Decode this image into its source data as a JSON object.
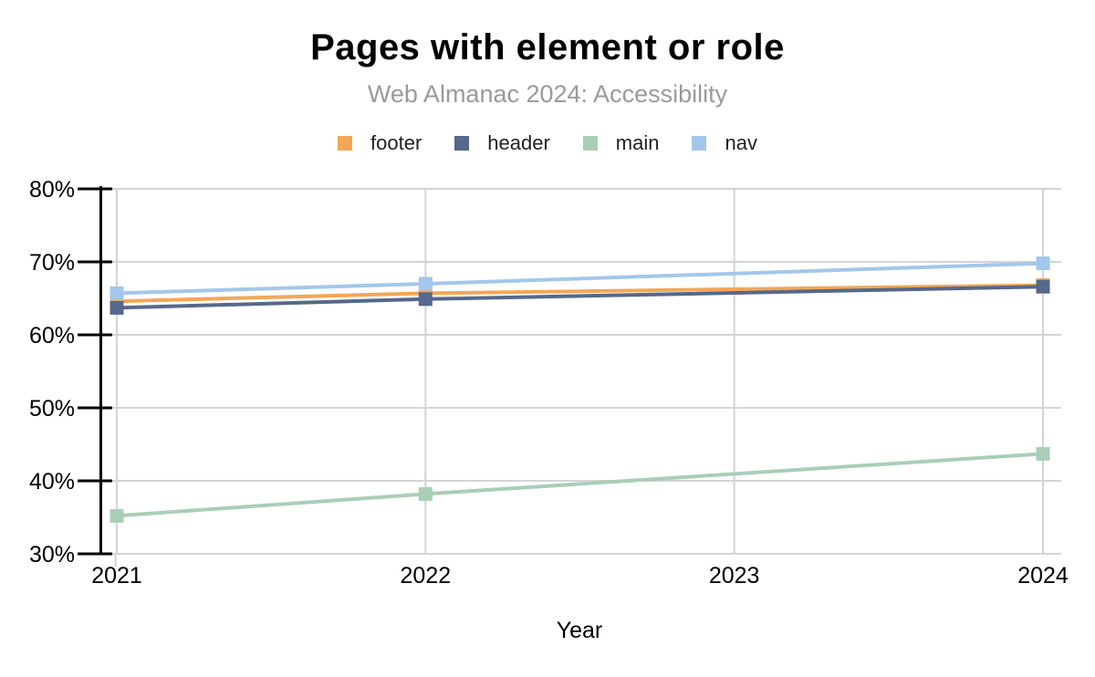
{
  "chart_data": {
    "type": "line",
    "title": "Pages with element or role",
    "subtitle": "Web Almanac 2024: Accessibility",
    "xlabel": "Year",
    "ylabel": "",
    "x": [
      2021,
      2022,
      2023,
      2024
    ],
    "x_tick_labels": [
      "2021",
      "2022",
      "2023",
      "2024"
    ],
    "y_tick_labels": [
      "30%",
      "40%",
      "50%",
      "60%",
      "70%",
      "80%"
    ],
    "ylim": [
      30,
      80
    ],
    "y_step": 10,
    "grid": true,
    "legend_position": "top",
    "marker": "square",
    "series": [
      {
        "name": "footer",
        "color": "#F3A756",
        "values": [
          64.6,
          65.7,
          null,
          66.8
        ]
      },
      {
        "name": "header",
        "color": "#56688B",
        "values": [
          63.7,
          64.9,
          null,
          66.6
        ]
      },
      {
        "name": "main",
        "color": "#A9CEB8",
        "values": [
          35.2,
          38.2,
          null,
          43.7
        ]
      },
      {
        "name": "nav",
        "color": "#A3C7EB",
        "values": [
          65.7,
          67.0,
          null,
          69.8
        ]
      }
    ]
  },
  "colors": {
    "grid": "#D4D4D4",
    "axis": "#000000",
    "subtitle_text": "#9A9A9A",
    "label_text": "#111111"
  }
}
